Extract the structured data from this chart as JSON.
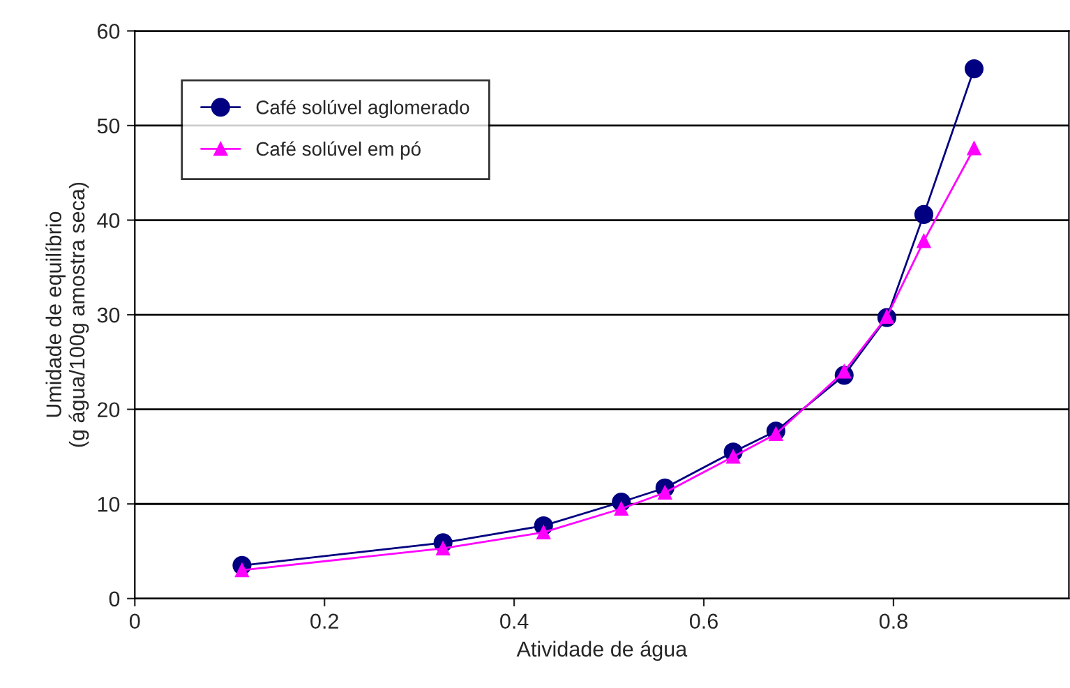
{
  "chart_data": {
    "type": "line",
    "xlabel": "Atividade de água",
    "ylabel": "Umidade de equilíbrio\n(g água/100g amostra seca)",
    "series": [
      {
        "name": "Café solúvel aglomerado",
        "color": "#000080",
        "marker": "circle",
        "x": [
          0.113,
          0.325,
          0.431,
          0.513,
          0.559,
          0.631,
          0.676,
          0.748,
          0.793,
          0.832,
          0.885
        ],
        "values": [
          3.5,
          5.9,
          7.7,
          10.2,
          11.7,
          15.5,
          17.7,
          23.6,
          29.7,
          40.6,
          56.0
        ]
      },
      {
        "name": "Café solúvel em pó",
        "color": "#ff00ff",
        "marker": "triangle",
        "x": [
          0.113,
          0.325,
          0.431,
          0.513,
          0.559,
          0.631,
          0.676,
          0.748,
          0.793,
          0.832,
          0.885
        ],
        "values": [
          3.0,
          5.3,
          7.0,
          9.5,
          11.2,
          15.0,
          17.4,
          24.0,
          29.8,
          37.8,
          47.6
        ]
      }
    ],
    "xlim": [
      0,
      0.985
    ],
    "xticks": [
      0,
      0.2,
      0.4,
      0.6,
      0.8
    ],
    "ylim": [
      0,
      60
    ],
    "yticks": [
      0,
      10,
      20,
      30,
      40,
      50,
      60
    ],
    "grid": "y",
    "legend": "top left"
  }
}
